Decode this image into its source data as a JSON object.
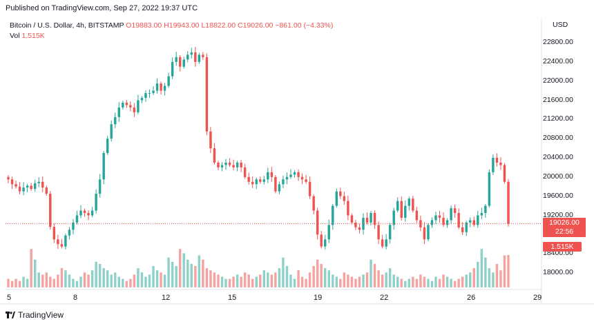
{
  "published": "Published on TradingView.com, Sep 27, 2022 19:37 UTC",
  "header": {
    "symbol": "Bitcoin / U.S. Dollar, 4h, BITSTAMP",
    "ohlc": "O19883.00 H19943.00 L18822.00 C19026.00 −861.00 (−4.33%)",
    "vol_label": "Vol",
    "vol_value": "1.515K"
  },
  "axis": {
    "currency": "USD",
    "price_labels": [
      "22800.00",
      "22400.00",
      "22000.00",
      "21600.00",
      "21200.00",
      "20800.00",
      "20400.00",
      "20000.00",
      "19600.00",
      "19200.00",
      "18400.00",
      "18000.00"
    ],
    "date_labels": [
      "5",
      "8",
      "12",
      "15",
      "19",
      "22",
      "26",
      "29"
    ]
  },
  "last_price": {
    "price": "19026.00",
    "countdown": "22:56"
  },
  "volume_tag": "1.515K",
  "brand": "TradingView",
  "colors": {
    "up": "#26a69a",
    "down": "#ef5350",
    "up_vol": "#8fd1c9",
    "down_vol": "#f5a3a1"
  },
  "chart_data": {
    "type": "candlestick",
    "title": "Bitcoin / U.S. Dollar, 4h, BITSTAMP",
    "ylabel": "USD",
    "ylim": [
      17700,
      23000
    ],
    "x_ticks": [
      "5",
      "8",
      "12",
      "15",
      "19",
      "22",
      "26",
      "29"
    ],
    "candles_close": [
      19950,
      19850,
      19800,
      19700,
      19780,
      19820,
      19750,
      19870,
      19900,
      19780,
      19650,
      18960,
      18700,
      18600,
      18550,
      18780,
      18900,
      19050,
      19200,
      19300,
      19250,
      19200,
      19300,
      19650,
      19950,
      20500,
      20800,
      21100,
      21250,
      21450,
      21550,
      21500,
      21450,
      21350,
      21600,
      21650,
      21750,
      21750,
      21800,
      21950,
      21800,
      21900,
      22100,
      22400,
      22500,
      22300,
      22450,
      22550,
      22600,
      22400,
      22550,
      22500,
      20950,
      20600,
      20300,
      20200,
      20250,
      20300,
      20250,
      20200,
      20300,
      20200,
      20000,
      19900,
      19850,
      19950,
      19900,
      19950,
      20100,
      20000,
      19700,
      19850,
      19950,
      20000,
      20050,
      20100,
      20000,
      19950,
      19900,
      19600,
      19300,
      18800,
      18550,
      18700,
      19000,
      19400,
      19700,
      19600,
      19500,
      19200,
      19050,
      18950,
      18900,
      19150,
      19050,
      19250,
      19000,
      18700,
      18550,
      18700,
      19000,
      19300,
      19500,
      19150,
      19400,
      19550,
      19300,
      19100,
      18950,
      18700,
      19000,
      19100,
      19200,
      19150,
      19000,
      19100,
      19350,
      19250,
      18950,
      18850,
      19050,
      19100,
      19000,
      19200,
      19250,
      19400,
      20100,
      20400,
      20300,
      20250,
      19900,
      19026
    ],
    "volume_k": [
      0.4,
      0.3,
      0.4,
      0.3,
      0.5,
      0.4,
      1.8,
      1.3,
      0.7,
      0.6,
      0.7,
      0.5,
      0.4,
      0.6,
      0.9,
      0.8,
      0.6,
      0.4,
      0.3,
      0.5,
      0.7,
      0.6,
      0.8,
      1.2,
      1.1,
      0.9,
      0.8,
      0.6,
      0.7,
      0.5,
      0.4,
      0.3,
      0.4,
      0.6,
      0.9,
      0.7,
      0.5,
      0.6,
      1.0,
      0.8,
      0.7,
      0.6,
      1.4,
      1.2,
      1.0,
      1.8,
      1.6,
      1.3,
      1.1,
      1.0,
      1.5,
      1.3,
      0.9,
      0.8,
      0.7,
      0.6,
      0.5,
      0.4,
      0.4,
      0.5,
      0.6,
      0.5,
      0.7,
      0.6,
      0.4,
      0.5,
      0.6,
      0.8,
      0.7,
      0.6,
      0.7,
      0.9,
      1.4,
      1.0,
      0.6,
      0.4,
      0.8,
      0.5,
      0.4,
      0.7,
      1.0,
      1.3,
      1.1,
      0.9,
      0.8,
      0.6,
      0.5,
      0.4,
      0.7,
      0.6,
      0.5,
      0.4,
      0.5,
      0.6,
      0.7,
      1.3,
      1.1,
      0.8,
      0.6,
      0.7,
      0.9,
      0.6,
      0.5,
      0.4,
      0.3,
      0.4,
      0.5,
      0.4,
      0.6,
      0.5,
      0.4,
      0.3,
      0.5,
      0.4,
      0.6,
      0.5,
      0.4,
      0.3,
      0.4,
      0.5,
      0.6,
      0.7,
      0.9,
      1.2,
      1.8,
      1.4,
      0.9,
      0.7,
      1.1,
      0.8,
      1.5,
      1.515
    ]
  }
}
